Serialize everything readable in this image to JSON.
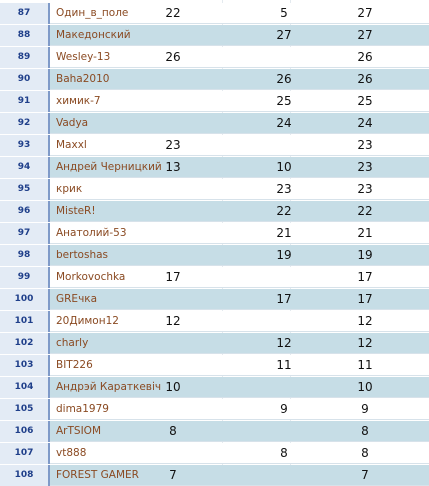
{
  "colors": {
    "stripe_light": "#ffffff",
    "stripe_dark": "#c6dde6",
    "rank_text": "#1f3f8a",
    "name_text": "#8a4a22"
  },
  "rows": [
    {
      "rank": "87",
      "name": "Один_в_поле",
      "v1": "22",
      "v2": "5",
      "total": "27"
    },
    {
      "rank": "88",
      "name": "Македонский",
      "v1": "",
      "v2": "27",
      "total": "27"
    },
    {
      "rank": "89",
      "name": "Wesley-13",
      "v1": "26",
      "v2": "",
      "total": "26"
    },
    {
      "rank": "90",
      "name": "Baha2010",
      "v1": "",
      "v2": "26",
      "total": "26"
    },
    {
      "rank": "91",
      "name": "химик-7",
      "v1": "",
      "v2": "25",
      "total": "25"
    },
    {
      "rank": "92",
      "name": "Vadya",
      "v1": "",
      "v2": "24",
      "total": "24"
    },
    {
      "rank": "93",
      "name": "Maxxl",
      "v1": "23",
      "v2": "",
      "total": "23"
    },
    {
      "rank": "94",
      "name": "Андрей Черницкий",
      "v1": "13",
      "v2": "10",
      "total": "23"
    },
    {
      "rank": "95",
      "name": "крик",
      "v1": "",
      "v2": "23",
      "total": "23"
    },
    {
      "rank": "96",
      "name": "MisteR!",
      "v1": "",
      "v2": "22",
      "total": "22"
    },
    {
      "rank": "97",
      "name": "Анатолий-53",
      "v1": "",
      "v2": "21",
      "total": "21"
    },
    {
      "rank": "98",
      "name": "bertoshas",
      "v1": "",
      "v2": "19",
      "total": "19"
    },
    {
      "rank": "99",
      "name": "Morkovochka",
      "v1": "17",
      "v2": "",
      "total": "17"
    },
    {
      "rank": "100",
      "name": "GREчка",
      "v1": "",
      "v2": "17",
      "total": "17"
    },
    {
      "rank": "101",
      "name": "20Димон12",
      "v1": "12",
      "v2": "",
      "total": "12"
    },
    {
      "rank": "102",
      "name": "charly",
      "v1": "",
      "v2": "12",
      "total": "12"
    },
    {
      "rank": "103",
      "name": "BIT226",
      "v1": "",
      "v2": "11",
      "total": "11"
    },
    {
      "rank": "104",
      "name": "Андрэй Караткевіч",
      "v1": "10",
      "v2": "",
      "total": "10"
    },
    {
      "rank": "105",
      "name": "dima1979",
      "v1": "",
      "v2": "9",
      "total": "9"
    },
    {
      "rank": "106",
      "name": "ArTSIOM",
      "v1": "8",
      "v2": "",
      "total": "8"
    },
    {
      "rank": "107",
      "name": "vt888",
      "v1": "",
      "v2": "8",
      "total": "8"
    },
    {
      "rank": "108",
      "name": "FOREST GAMER",
      "v1": "7",
      "v2": "",
      "total": "7"
    }
  ]
}
